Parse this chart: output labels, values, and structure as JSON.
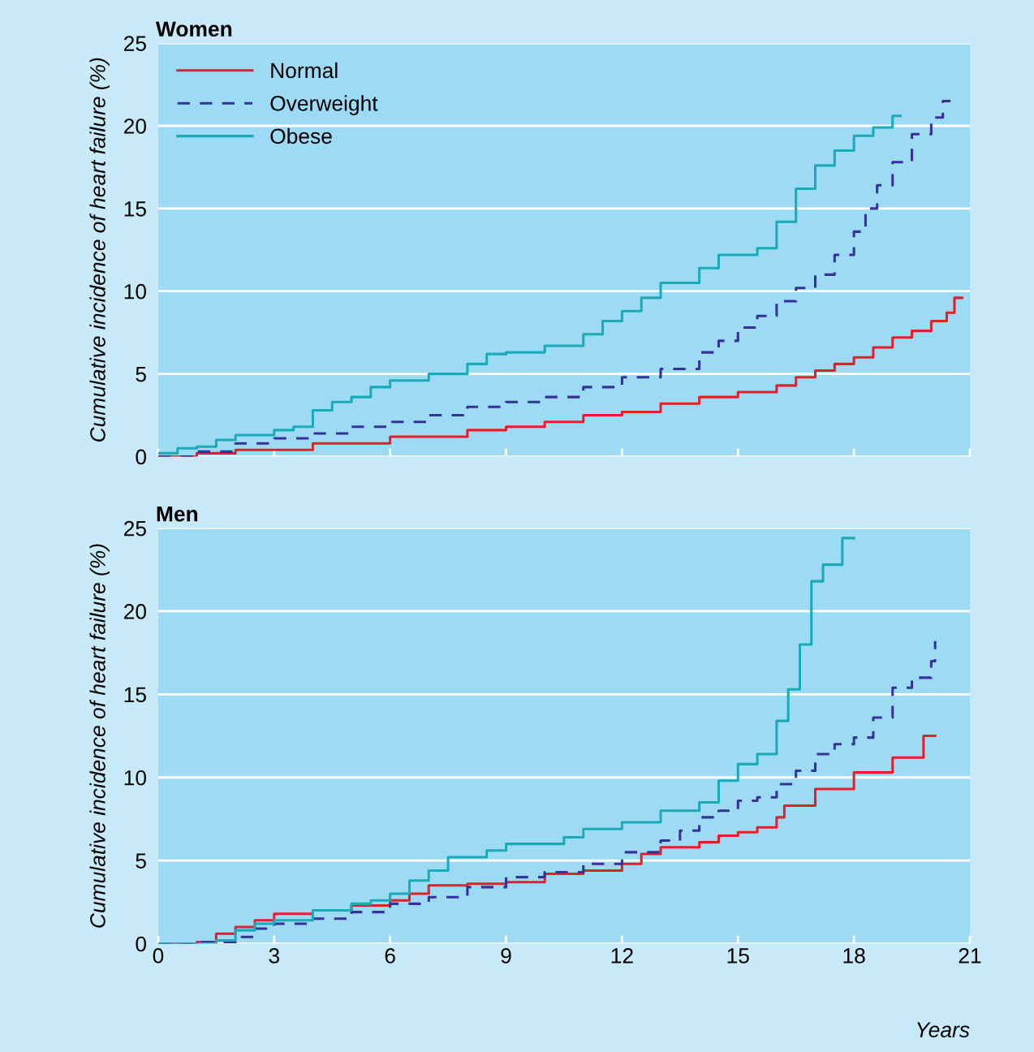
{
  "chart_data": [
    {
      "type": "step",
      "title": "Women",
      "ylabel": "Cumulative incidence of heart failure (%)",
      "xlim": [
        0,
        21
      ],
      "xticks": [
        0,
        3,
        6,
        9,
        12,
        15,
        18,
        21
      ],
      "ylim": [
        0,
        25
      ],
      "yticks": [
        0,
        5,
        10,
        15,
        20,
        25
      ],
      "grid": "y",
      "legend": "top left",
      "tick_labels": "y",
      "series": [
        {
          "name": "Normal",
          "color": "#e3202a",
          "line_style": "solid",
          "x": [
            0,
            1,
            2,
            4,
            6,
            8,
            9,
            10,
            11,
            12,
            13,
            14,
            15,
            16,
            16.5,
            17,
            17.5,
            18,
            18.5,
            19,
            19.5,
            20,
            20.4,
            20.6,
            20.8
          ],
          "values": [
            0,
            0.2,
            0.4,
            0.8,
            1.2,
            1.6,
            1.8,
            2.1,
            2.5,
            2.7,
            3.2,
            3.6,
            3.9,
            4.3,
            4.8,
            5.2,
            5.6,
            6.0,
            6.6,
            7.2,
            7.6,
            8.2,
            8.7,
            9.6,
            9.6
          ]
        },
        {
          "name": "Overweight",
          "color": "#333399",
          "line_style": "dashed",
          "x": [
            0,
            1,
            2,
            3,
            4,
            5,
            6,
            7,
            8,
            9,
            10,
            11,
            12,
            13,
            14,
            14.5,
            15,
            15.5,
            16,
            16.5,
            17,
            17.5,
            18,
            18.3,
            18.6,
            19,
            19.5,
            20,
            20.3,
            20.5
          ],
          "values": [
            0,
            0.3,
            0.8,
            1.1,
            1.4,
            1.8,
            2.1,
            2.5,
            3.0,
            3.3,
            3.6,
            4.2,
            4.8,
            5.3,
            6.3,
            7.0,
            7.8,
            8.5,
            9.4,
            10.2,
            11.0,
            12.2,
            13.6,
            15.0,
            16.4,
            17.8,
            19.5,
            20.5,
            21.5,
            21.5
          ]
        },
        {
          "name": "Obese",
          "color": "#1aaab8",
          "line_style": "solid",
          "x": [
            0,
            0.5,
            1,
            1.5,
            2,
            3,
            3.5,
            4,
            4.5,
            5,
            5.5,
            6,
            7,
            8,
            8.5,
            9,
            10,
            11,
            11.5,
            12,
            12.5,
            13,
            14,
            14.5,
            15.5,
            16,
            16.5,
            17,
            17.5,
            18,
            18.5,
            19,
            19.2
          ],
          "values": [
            0.2,
            0.5,
            0.6,
            1.0,
            1.3,
            1.6,
            1.8,
            2.8,
            3.3,
            3.6,
            4.2,
            4.6,
            5.0,
            5.6,
            6.2,
            6.3,
            6.7,
            7.4,
            8.2,
            8.8,
            9.6,
            10.5,
            11.4,
            12.2,
            12.6,
            14.2,
            16.2,
            17.6,
            18.5,
            19.4,
            19.9,
            20.6,
            20.6
          ]
        }
      ]
    },
    {
      "type": "step",
      "title": "Men",
      "ylabel": "Cumulative incidence of heart failure (%)",
      "xlabel": "Years",
      "xlim": [
        0,
        21
      ],
      "xticks": [
        0,
        3,
        6,
        9,
        12,
        15,
        18,
        21
      ],
      "ylim": [
        0,
        25
      ],
      "yticks": [
        0,
        5,
        10,
        15,
        20,
        25
      ],
      "grid": "y",
      "series": [
        {
          "color": "#e3202a",
          "line_style": "solid",
          "x": [
            0,
            1,
            1.5,
            2,
            2.5,
            3,
            4,
            5,
            6,
            6.5,
            7,
            8,
            9,
            10,
            11,
            12,
            12.5,
            13,
            14,
            14.5,
            15,
            15.5,
            16,
            16.2,
            17,
            18,
            19,
            19.8,
            20.1
          ],
          "values": [
            0,
            0.1,
            0.6,
            1.0,
            1.4,
            1.8,
            2.0,
            2.3,
            2.6,
            3.0,
            3.5,
            3.6,
            3.7,
            4.2,
            4.4,
            4.8,
            5.4,
            5.8,
            6.1,
            6.5,
            6.7,
            7.0,
            7.6,
            8.3,
            9.3,
            10.3,
            11.2,
            12.5,
            12.5
          ]
        },
        {
          "color": "#333399",
          "line_style": "dashed",
          "x": [
            0,
            1,
            2,
            2.5,
            3,
            4,
            5,
            6,
            7,
            8,
            9,
            10,
            11,
            12,
            13,
            13.5,
            14,
            14.5,
            15,
            15.5,
            16,
            16.5,
            17,
            17.5,
            18,
            18.5,
            19,
            19.5,
            20,
            20.1
          ],
          "values": [
            0,
            0.1,
            0.4,
            0.9,
            1.2,
            1.5,
            1.9,
            2.4,
            2.8,
            3.4,
            4.0,
            4.3,
            4.8,
            5.5,
            6.2,
            6.8,
            7.6,
            8.0,
            8.6,
            8.8,
            9.6,
            10.4,
            11.4,
            12.0,
            12.4,
            13.6,
            15.4,
            16.0,
            17.0,
            18.2
          ]
        },
        {
          "color": "#1aaab8",
          "line_style": "solid",
          "x": [
            0,
            1.5,
            2,
            2.5,
            3,
            4,
            5,
            5.5,
            6,
            6.5,
            7,
            7.5,
            8.5,
            9,
            10.5,
            11,
            12,
            13,
            14,
            14.5,
            15,
            15.5,
            16,
            16.3,
            16.6,
            16.9,
            17.2,
            17.7,
            18
          ],
          "values": [
            0,
            0.2,
            0.8,
            1.2,
            1.4,
            2.0,
            2.4,
            2.6,
            3.0,
            3.8,
            4.4,
            5.2,
            5.6,
            6.0,
            6.4,
            6.9,
            7.3,
            8.0,
            8.5,
            9.8,
            10.8,
            11.4,
            13.4,
            15.3,
            18.0,
            21.8,
            22.8,
            24.4,
            24.4
          ]
        }
      ]
    }
  ]
}
